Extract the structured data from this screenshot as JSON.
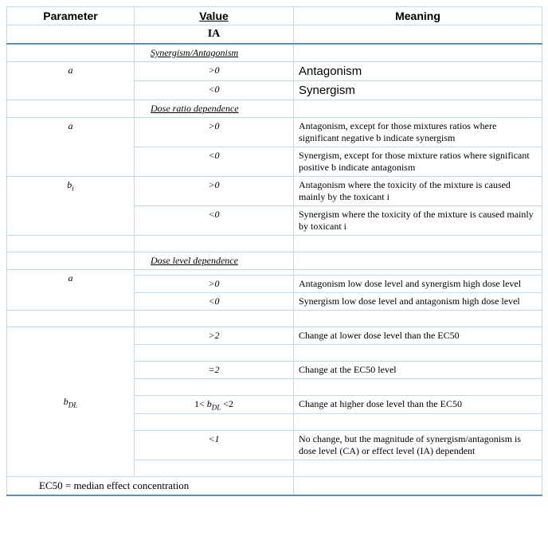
{
  "headers": {
    "parameter": "Parameter",
    "value": "Value",
    "meaning": "Meaning",
    "ia": "IA"
  },
  "sections": {
    "syn_ant": "Synergism/Antagonism",
    "dose_ratio": "Dose ratio dependence",
    "dose_level": "Dose level dependence"
  },
  "params": {
    "a": "a",
    "bi_b": "b",
    "bi_sub": "i",
    "bdl_b": "b",
    "bdl_sub": "DL"
  },
  "vals": {
    "gt0": ">0",
    "lt0": "<0",
    "gt2": ">2",
    "eq2": "=2",
    "range_pre": "1<",
    "range_mid": "b",
    "range_sub": "DL",
    "range_post": "<2",
    "lt1": "<1"
  },
  "meanings": {
    "antagonism": "Antagonism",
    "synergism": "Synergism",
    "dr_gt0": "Antagonism, except for those mixtures ratios where significant negative b indicate synergism",
    "dr_lt0": "Synergism, except for those mixture ratios where significant positive b  indicate antagonism",
    "bi_gt0": "Antagonism where the toxicity of the mixture is caused mainly by the toxicant i",
    "bi_lt0": "Synergism where the toxicity of the mixture is caused mainly by toxicant i",
    "dl_gt0": "Antagonism low dose level and synergism high dose level",
    "dl_lt0": "Synergism low dose level and antagonism high dose level",
    "bdl_gt2": "Change at lower dose level than the EC50",
    "bdl_eq2": "Change at the EC50 level",
    "bdl_range": "Change at higher dose level than the EC50",
    "bdl_lt1": "No change, but the magnitude of synergism/antagonism is dose level (CA) or effect level (IA) dependent"
  },
  "footnote": "EC50 = median effect concentration"
}
